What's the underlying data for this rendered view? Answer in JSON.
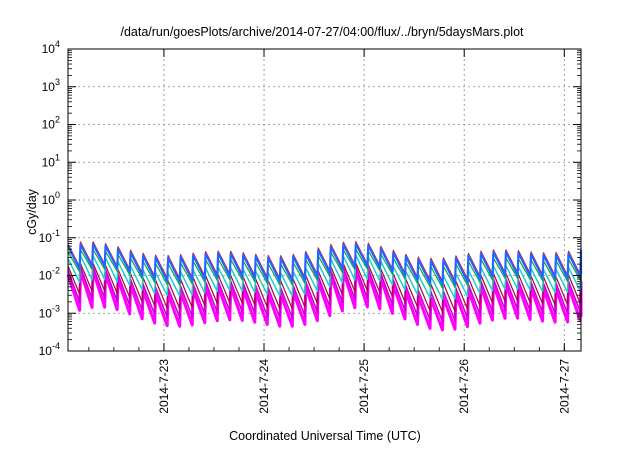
{
  "chart_data": {
    "type": "line",
    "title": "/data/run/goesPlots/archive/2014-07-27/04:00/flux/../bryn/5daysMars.plot",
    "xlabel": "Coordinated Universal Time (UTC)",
    "ylabel": "cGy/day",
    "x_range": [
      "2014-07-22T01:00",
      "2014-07-27T04:00"
    ],
    "x_ticks": [
      "2014-7-23",
      "2014-7-24",
      "2014-7-25",
      "2014-7-26",
      "2014-7-27"
    ],
    "y_scale": "log",
    "ylim": [
      0.0001,
      10000
    ],
    "y_ticks": [
      {
        "base": "10",
        "exp": "-4"
      },
      {
        "base": "10",
        "exp": "-3"
      },
      {
        "base": "10",
        "exp": "-2"
      },
      {
        "base": "10",
        "exp": "-1"
      },
      {
        "base": "10",
        "exp": "0"
      },
      {
        "base": "10",
        "exp": "1"
      },
      {
        "base": "10",
        "exp": "2"
      },
      {
        "base": "10",
        "exp": "3"
      },
      {
        "base": "10",
        "exp": "4"
      }
    ],
    "grid": true,
    "legend": "none",
    "sawtooth_period_hours": 3,
    "series": [
      {
        "color": "#ff00ff",
        "peak": [
          0.002,
          0.014
        ],
        "trough": [
          0.0003,
          0.0015
        ],
        "width": 3
      },
      {
        "color": "#cc00cc",
        "peak": [
          0.003,
          0.018
        ],
        "trough": [
          0.0005,
          0.0025
        ],
        "width": 1.5
      },
      {
        "color": "#aa0044",
        "peak": [
          0.005,
          0.022
        ],
        "trough": [
          0.0009,
          0.004
        ],
        "width": 1.2
      },
      {
        "color": "#22cccc",
        "peak": [
          0.008,
          0.035
        ],
        "trough": [
          0.002,
          0.008
        ],
        "width": 1.5
      },
      {
        "color": "#00aa44",
        "peak": [
          0.015,
          0.05
        ],
        "trough": [
          0.004,
          0.015
        ],
        "width": 1.2
      },
      {
        "color": "#ff0000",
        "peak": [
          0.025,
          0.08
        ],
        "trough": [
          0.006,
          0.02
        ],
        "width": 1.2
      },
      {
        "color": "#2266ff",
        "peak": [
          0.022,
          0.07
        ],
        "trough": [
          0.005,
          0.018
        ],
        "width": 2.2
      }
    ]
  }
}
